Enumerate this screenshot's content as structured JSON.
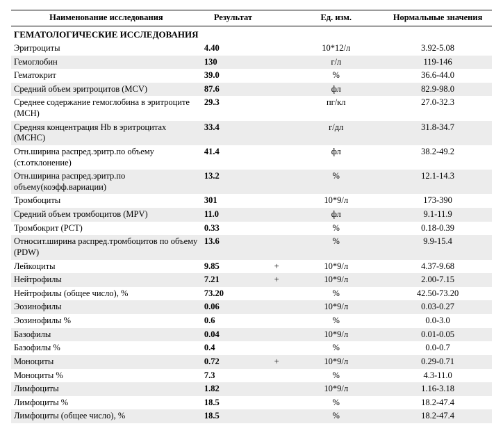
{
  "colors": {
    "row_alt_bg": "#ececec",
    "row_bg": "#ffffff",
    "text": "#000000",
    "border": "#000000"
  },
  "header": {
    "name": "Наименование исследования",
    "result": "Результат",
    "unit": "Ед. изм.",
    "range": "Нормальные значения"
  },
  "section_title": "ГЕМАТОЛОГИЧЕСКИЕ ИССЛЕДОВАНИЯ",
  "rows": [
    {
      "name": "Эритроциты",
      "result": "4.40",
      "flag": "",
      "unit": "10*12/л",
      "range": "3.92-5.08",
      "alt": false
    },
    {
      "name": "Гемоглобин",
      "result": "130",
      "flag": "",
      "unit": "г/л",
      "range": "119-146",
      "alt": true
    },
    {
      "name": "Гематокрит",
      "result": "39.0",
      "flag": "",
      "unit": "%",
      "range": "36.6-44.0",
      "alt": false
    },
    {
      "name": "Средний объем эритроцитов (MCV)",
      "result": "87.6",
      "flag": "",
      "unit": "фл",
      "range": "82.9-98.0",
      "alt": true
    },
    {
      "name": "Среднее содержание гемоглобина в эритроците (MCH)",
      "result": "29.3",
      "flag": "",
      "unit": "пг/кл",
      "range": "27.0-32.3",
      "alt": false
    },
    {
      "name": "Средняя концентрация Hb в эритроцитах (MCHC)",
      "result": "33.4",
      "flag": "",
      "unit": "г/дл",
      "range": "31.8-34.7",
      "alt": true
    },
    {
      "name": "Отн.ширина распред.эритр.по объему (ст.отклонение)",
      "result": "41.4",
      "flag": "",
      "unit": "фл",
      "range": "38.2-49.2",
      "alt": false
    },
    {
      "name": "Отн.ширина распред.эритр.по объему(коэфф.вариации)",
      "result": "13.2",
      "flag": "",
      "unit": "%",
      "range": "12.1-14.3",
      "alt": true
    },
    {
      "name": "Тромбоциты",
      "result": "301",
      "flag": "",
      "unit": "10*9/л",
      "range": "173-390",
      "alt": false
    },
    {
      "name": "Средний объем тромбоцитов (MPV)",
      "result": "11.0",
      "flag": "",
      "unit": "фл",
      "range": "9.1-11.9",
      "alt": true
    },
    {
      "name": "Тромбокрит (PCT)",
      "result": "0.33",
      "flag": "",
      "unit": "%",
      "range": "0.18-0.39",
      "alt": false
    },
    {
      "name": "Относит.ширина распред.тромбоцитов по объему (PDW)",
      "result": "13.6",
      "flag": "",
      "unit": "%",
      "range": "9.9-15.4",
      "alt": true
    },
    {
      "name": "Лейкоциты",
      "result": "9.85",
      "flag": "+",
      "unit": "10*9/л",
      "range": "4.37-9.68",
      "alt": false
    },
    {
      "name": "Нейтрофилы",
      "result": "7.21",
      "flag": "+",
      "unit": "10*9/л",
      "range": "2.00-7.15",
      "alt": true
    },
    {
      "name": "Нейтрофилы (общее число), %",
      "result": "73.20",
      "flag": "",
      "unit": "%",
      "range": "42.50-73.20",
      "alt": false
    },
    {
      "name": "Эозинофилы",
      "result": "0.06",
      "flag": "",
      "unit": "10*9/л",
      "range": "0.03-0.27",
      "alt": true
    },
    {
      "name": "Эозинофилы %",
      "result": "0.6",
      "flag": "",
      "unit": "%",
      "range": "0.0-3.0",
      "alt": false
    },
    {
      "name": "Базофилы",
      "result": "0.04",
      "flag": "",
      "unit": "10*9/л",
      "range": "0.01-0.05",
      "alt": true
    },
    {
      "name": "Базофилы %",
      "result": "0.4",
      "flag": "",
      "unit": "%",
      "range": "0.0-0.7",
      "alt": false
    },
    {
      "name": "Моноциты",
      "result": "0.72",
      "flag": "+",
      "unit": "10*9/л",
      "range": "0.29-0.71",
      "alt": true
    },
    {
      "name": "Моноциты %",
      "result": "7.3",
      "flag": "",
      "unit": "%",
      "range": "4.3-11.0",
      "alt": false
    },
    {
      "name": "Лимфоциты",
      "result": "1.82",
      "flag": "",
      "unit": "10*9/л",
      "range": "1.16-3.18",
      "alt": true
    },
    {
      "name": "Лимфоциты %",
      "result": "18.5",
      "flag": "",
      "unit": "%",
      "range": "18.2-47.4",
      "alt": false
    },
    {
      "name": "Лимфоциты (общее число), %",
      "result": "18.5",
      "flag": "",
      "unit": "%",
      "range": "18.2-47.4",
      "alt": true
    }
  ]
}
